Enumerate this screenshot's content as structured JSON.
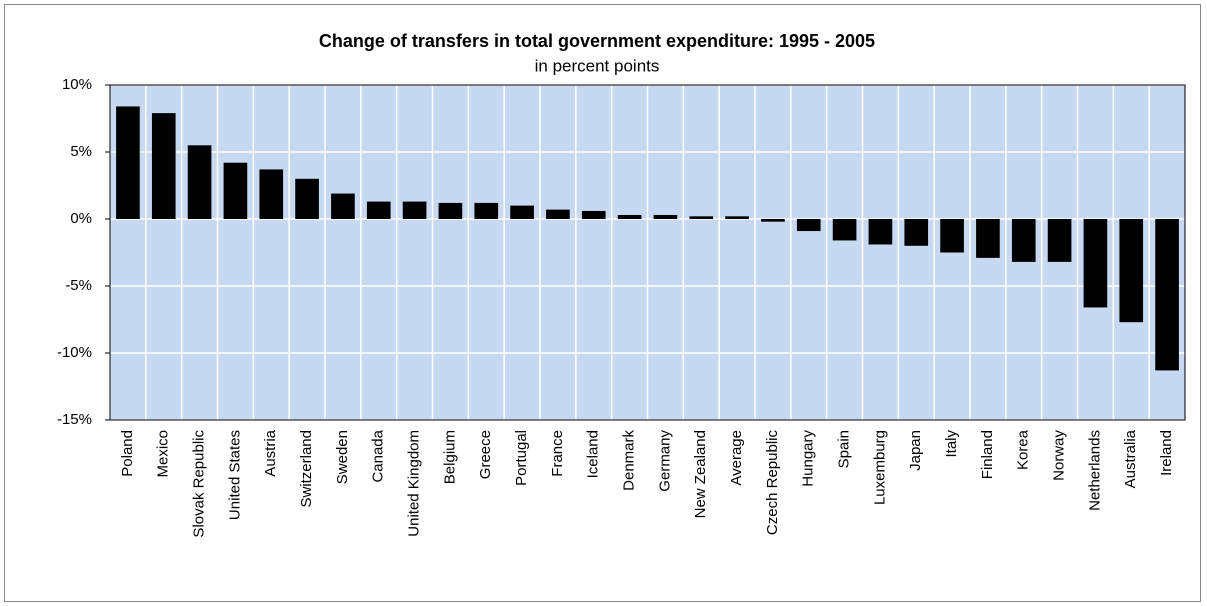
{
  "chart_data": {
    "type": "bar",
    "title": "Change of transfers in total government expenditure: 1995 - 2005",
    "subtitle": "in percent points",
    "categories": [
      "Poland",
      "Mexico",
      "Slovak Republic",
      "United States",
      "Austria",
      "Switzerland",
      "Sweden",
      "Canada",
      "United Kingdom",
      "Belgium",
      "Greece",
      "Portugal",
      "France",
      "Iceland",
      "Denmark",
      "Germany",
      "New Zealand",
      "Average",
      "Czech Republic",
      "Hungary",
      "Spain",
      "Luxemburg",
      "Japan",
      "Italy",
      "Finland",
      "Korea",
      "Norway",
      "Netherlands",
      "Australia",
      "Ireland"
    ],
    "values": [
      8.4,
      7.9,
      5.5,
      4.2,
      3.7,
      3.0,
      1.9,
      1.3,
      1.3,
      1.2,
      1.2,
      1.0,
      0.7,
      0.6,
      0.3,
      0.3,
      0.2,
      0.2,
      -0.2,
      -0.9,
      -1.6,
      -1.9,
      -2.0,
      -2.5,
      -2.9,
      -3.2,
      -3.2,
      -6.6,
      -7.7,
      -11.3
    ],
    "color": "#000000",
    "ylim": [
      -15,
      10
    ],
    "yticks": [
      {
        "value": -15,
        "label": "-15%"
      },
      {
        "value": -10,
        "label": "-10%"
      },
      {
        "value": -5,
        "label": "-5%"
      },
      {
        "value": 0,
        "label": "0%"
      },
      {
        "value": 5,
        "label": "5%"
      },
      {
        "value": 10,
        "label": "10%"
      }
    ],
    "grid": true
  }
}
